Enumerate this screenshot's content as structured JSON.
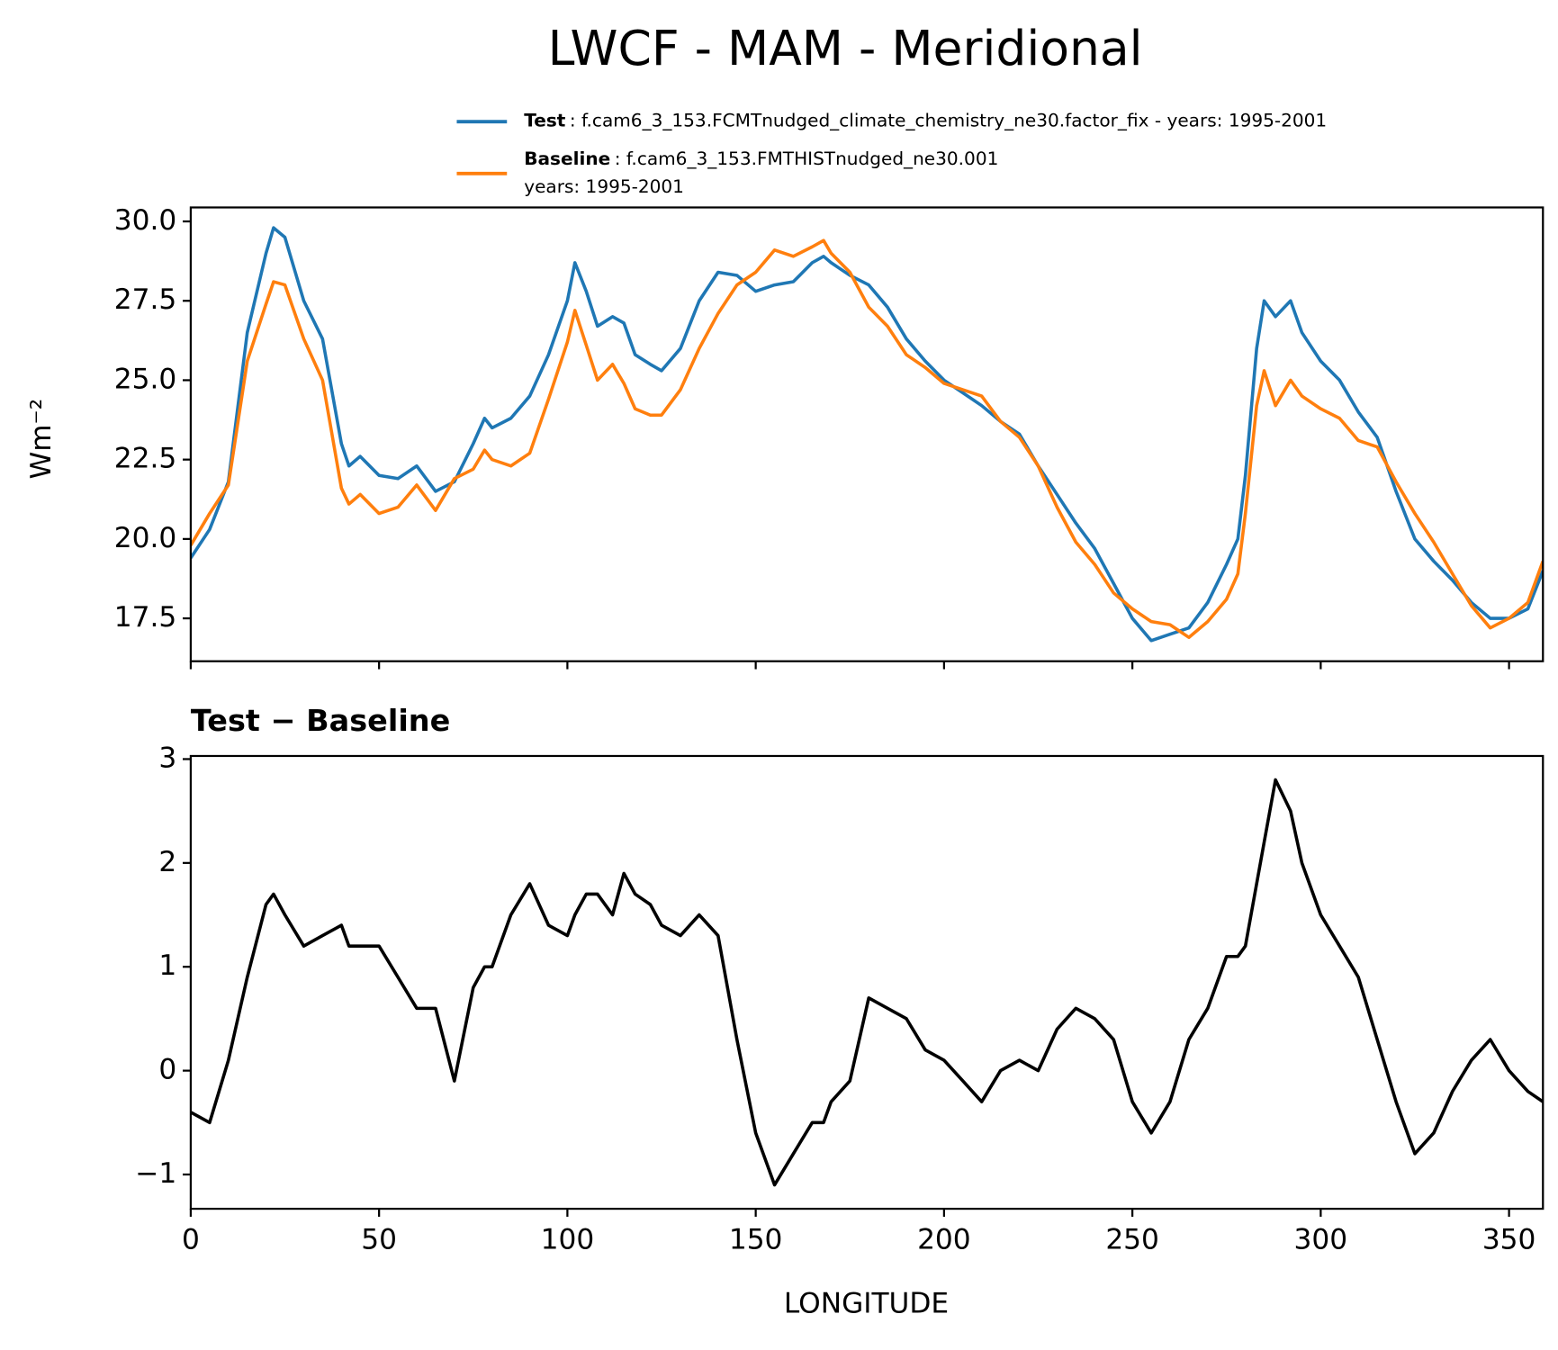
{
  "chart_data": [
    {
      "type": "line",
      "title": "LWCF - MAM - Meridional",
      "ylabel": "Wm⁻²",
      "x": [
        0,
        5,
        10,
        15,
        20,
        22,
        25,
        30,
        35,
        40,
        42,
        45,
        50,
        55,
        60,
        65,
        70,
        75,
        78,
        80,
        85,
        90,
        95,
        100,
        102,
        105,
        108,
        112,
        115,
        118,
        122,
        125,
        130,
        135,
        140,
        145,
        150,
        155,
        160,
        165,
        168,
        170,
        175,
        180,
        185,
        190,
        195,
        200,
        205,
        210,
        215,
        220,
        225,
        230,
        235,
        240,
        245,
        250,
        255,
        260,
        265,
        270,
        275,
        278,
        280,
        283,
        285,
        288,
        292,
        295,
        300,
        305,
        310,
        315,
        320,
        325,
        330,
        335,
        340,
        345,
        350,
        355,
        359
      ],
      "series": [
        {
          "name": "Test",
          "label": [
            ": f.cam6_3_153.FCMTnudged_climate_chemistry_ne30.factor_fix - years: 1995-2001"
          ],
          "color": "#1f77b4",
          "values": [
            19.4,
            20.3,
            21.8,
            26.5,
            29.0,
            29.8,
            29.5,
            27.5,
            26.3,
            23.0,
            22.3,
            22.6,
            22.0,
            21.9,
            22.3,
            21.5,
            21.8,
            23.0,
            23.8,
            23.5,
            23.8,
            24.5,
            25.8,
            27.5,
            28.7,
            27.8,
            26.7,
            27.0,
            26.8,
            25.8,
            25.5,
            25.3,
            26.0,
            27.5,
            28.4,
            28.3,
            27.8,
            28.0,
            28.1,
            28.7,
            28.9,
            28.7,
            28.3,
            28.0,
            27.3,
            26.3,
            25.6,
            25.0,
            24.6,
            24.2,
            23.7,
            23.3,
            22.3,
            21.4,
            20.5,
            19.7,
            18.6,
            17.5,
            16.8,
            17.0,
            17.2,
            18.0,
            19.2,
            20.0,
            22.0,
            26.0,
            27.5,
            27.0,
            27.5,
            26.5,
            25.6,
            25.0,
            24.0,
            23.2,
            21.5,
            20.0,
            19.3,
            18.7,
            18.0,
            17.5,
            17.5,
            17.8,
            19.0
          ]
        },
        {
          "name": "Baseline",
          "label": [
            ": f.cam6_3_153.FMTHISTnudged_ne30.001",
            "years: 1995-2001"
          ],
          "color": "#ff7f0e",
          "values": [
            19.8,
            20.8,
            21.7,
            25.6,
            27.4,
            28.1,
            28.0,
            26.3,
            25.0,
            21.6,
            21.1,
            21.4,
            20.8,
            21.0,
            21.7,
            20.9,
            21.9,
            22.2,
            22.8,
            22.5,
            22.3,
            22.7,
            24.4,
            26.2,
            27.2,
            26.1,
            25.0,
            25.5,
            24.9,
            24.1,
            23.9,
            23.9,
            24.7,
            26.0,
            27.1,
            28.0,
            28.4,
            29.1,
            28.9,
            29.2,
            29.4,
            29.0,
            28.4,
            27.3,
            26.7,
            25.8,
            25.4,
            24.9,
            24.7,
            24.5,
            23.7,
            23.2,
            22.3,
            21.0,
            19.9,
            19.2,
            18.3,
            17.8,
            17.4,
            17.3,
            16.9,
            17.4,
            18.1,
            18.9,
            20.8,
            24.2,
            25.3,
            24.2,
            25.0,
            24.5,
            24.1,
            23.8,
            23.1,
            22.9,
            21.8,
            20.8,
            19.9,
            18.9,
            17.9,
            17.2,
            17.5,
            18.0,
            19.3
          ]
        }
      ],
      "xlim": [
        0,
        359
      ],
      "xticks": [
        0,
        50,
        100,
        150,
        200,
        250,
        300,
        350
      ],
      "xticklabels": false,
      "ylim": [
        16.15,
        30.44
      ],
      "yticks": [
        {
          "value": 17.5,
          "label": "17.5"
        },
        {
          "value": 20,
          "label": "20.0"
        },
        {
          "value": 22.5,
          "label": "22.5"
        },
        {
          "value": 25,
          "label": "25.0"
        },
        {
          "value": 27.5,
          "label": "27.5"
        },
        {
          "value": 30,
          "label": "30.0"
        }
      ]
    },
    {
      "type": "line",
      "title": "Test − Baseline",
      "xlabel": "LONGITUDE",
      "x": [
        0,
        5,
        10,
        15,
        20,
        22,
        25,
        30,
        35,
        40,
        42,
        45,
        50,
        55,
        60,
        65,
        70,
        75,
        78,
        80,
        85,
        90,
        95,
        100,
        102,
        105,
        108,
        112,
        115,
        118,
        122,
        125,
        130,
        135,
        140,
        145,
        150,
        155,
        160,
        165,
        168,
        170,
        175,
        180,
        185,
        190,
        195,
        200,
        205,
        210,
        215,
        220,
        225,
        230,
        235,
        240,
        245,
        250,
        255,
        260,
        265,
        270,
        275,
        278,
        280,
        283,
        285,
        288,
        292,
        295,
        300,
        305,
        310,
        315,
        320,
        325,
        330,
        335,
        340,
        345,
        350,
        355,
        359
      ],
      "series": [
        {
          "color": "#000000",
          "values": [
            -0.4,
            -0.5,
            0.1,
            0.9,
            1.6,
            1.7,
            1.5,
            1.2,
            1.3,
            1.4,
            1.2,
            1.2,
            1.2,
            0.9,
            0.6,
            0.6,
            -0.1,
            0.8,
            1.0,
            1.0,
            1.5,
            1.8,
            1.4,
            1.3,
            1.5,
            1.7,
            1.7,
            1.5,
            1.9,
            1.7,
            1.6,
            1.4,
            1.3,
            1.5,
            1.3,
            0.3,
            -0.6,
            -1.1,
            -0.8,
            -0.5,
            -0.5,
            -0.3,
            -0.1,
            0.7,
            0.6,
            0.5,
            0.2,
            0.1,
            -0.1,
            -0.3,
            0.0,
            0.1,
            0.0,
            0.4,
            0.6,
            0.5,
            0.3,
            -0.3,
            -0.6,
            -0.3,
            0.3,
            0.6,
            1.1,
            1.1,
            1.2,
            1.8,
            2.2,
            2.8,
            2.5,
            2.0,
            1.5,
            1.2,
            0.9,
            0.3,
            -0.3,
            -0.8,
            -0.6,
            -0.2,
            0.1,
            0.3,
            0.0,
            -0.2,
            -0.3
          ]
        }
      ],
      "xlim": [
        0,
        359
      ],
      "xticks": [
        0,
        50,
        100,
        150,
        200,
        250,
        300,
        350
      ],
      "xticklabels": true,
      "ylim": [
        -1.33,
        3.03
      ],
      "yticks": [
        {
          "value": -1,
          "label": "−1"
        },
        0,
        1,
        2,
        3
      ]
    }
  ]
}
